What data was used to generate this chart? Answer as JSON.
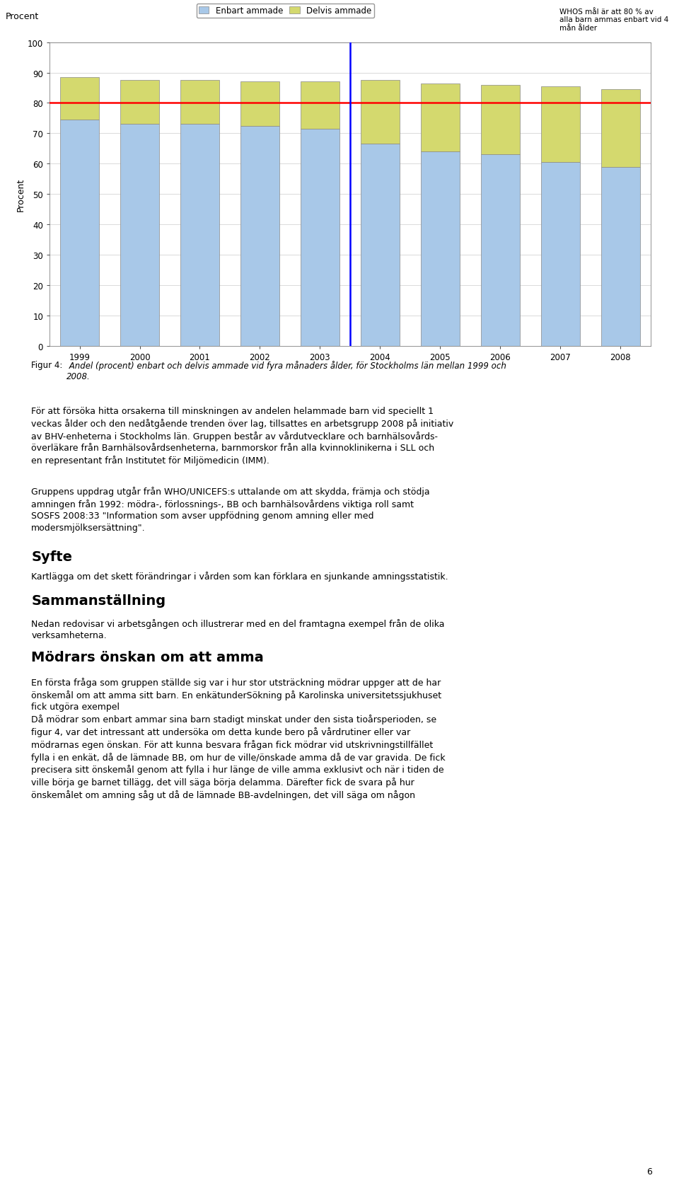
{
  "years": [
    "1999",
    "2000",
    "2001",
    "2002",
    "2003",
    "2004",
    "2005",
    "2006",
    "2007",
    "2008"
  ],
  "enbart": [
    74.5,
    73.0,
    73.0,
    72.5,
    71.5,
    66.5,
    64.0,
    63.0,
    60.5,
    59.0
  ],
  "delvis": [
    14.0,
    14.5,
    14.5,
    14.5,
    15.5,
    21.0,
    22.5,
    23.0,
    25.0,
    25.5
  ],
  "enbart_color": "#a8c8e8",
  "delvis_color": "#d4d96e",
  "bar_edge_color": "#888888",
  "red_line_y": 80,
  "blue_vline_x": 4.5,
  "ylabel": "Procent",
  "ylim_min": 0,
  "ylim_max": 100,
  "yticks": [
    0,
    10,
    20,
    30,
    40,
    50,
    60,
    70,
    80,
    90,
    100
  ],
  "legend_enbart": "Enbart ammade",
  "legend_delvis": "Delvis ammade",
  "who_text": "WHOS mål är att 80 % av\nalla barn ammas enbart vid 4\nmån ålder",
  "fig_caption_label": "Figur 4:",
  "fig_caption_rest": " Andel (procent) enbart och delvis ammade vid fyra månaders ålder, för Stockholms län mellan 1999 och\n2008.",
  "p1_line1": "För att försöka ",
  "p1_bold1": "hitta",
  "p1_line1_rest": " orsakerna till minskningen av andelen helammade barn vid speciellt 1",
  "p1": "För att försöka hitta orsakerna till minskningen av andelen helammade barn vid speciellt 1\nveckas ålder och den nedåtgående trenden över lag, tillsattes en arbetsgrupp 2008 på initiativ\nav BHV-enheterna i Stockholms län. Gruppen består av vårdutvecklare och barnhälsovårds-\növerläkare från Barnhälsovårdsenheterna, barnmorskor från alla kvinnoklinikerna i SLL och\nen representant från Institutet för Miljömedicin (IMM).",
  "p2": "Gruppens uppdrag utgår från WHO/UNICEFS:s uttalande om att skydda, främja och stödja\namningen från 1992: mödra-, förlossnings-, BB och barnhälsovårdens viktiga roll samt\nSOSFS 2008:33 \"Information som avser uppfödning genom amning eller med\nmodersmjölksersättning\".",
  "h1": "Syfte",
  "p3": "Kartlägga om det skett förändringar i vården som kan förklara en sjunkande amningsstatistik.",
  "h2": "Sammanställning",
  "p4": "Nedan redovisar vi arbetsgången och illustrerar med en del framtagna exempel från de olika\nverksamheterna.",
  "h3": "Mödrars önskan om att amma",
  "p5": "En första fråga som gruppen ställde sig var i hur stor utsträckning mödrar uppger att de har\nönskemål om att amma sitt barn. En enkätunderSökning på Karolinska universitetssjukhuset\nfick utgöra exempel\nDå mödrar som enbart ammar sina barn stadigt minskat under den sista tioårsperioden, se\nfigur 4, var det intressant att undersöka om detta kunde bero på vårdrutiner eller var\nmödrarnas egen önskan. För att kunna besvara frågan fick mödrar vid utskrivningstillfället\nfylla i en enkät, då de lämnade BB, om hur de ville/önskade amma då de var gravida. De fick\nprecisera sitt önskemål genom att fylla i hur länge de ville amma exklusivt och när i tiden de\nville börja ge barnet tillägg, det vill säga börja delamma. Därefter fick de svara på hur\nönskemålet om amning såg ut då de lämnade BB-avdelningen, det vill säga om någon",
  "page_number": "6",
  "background_color": "#ffffff"
}
